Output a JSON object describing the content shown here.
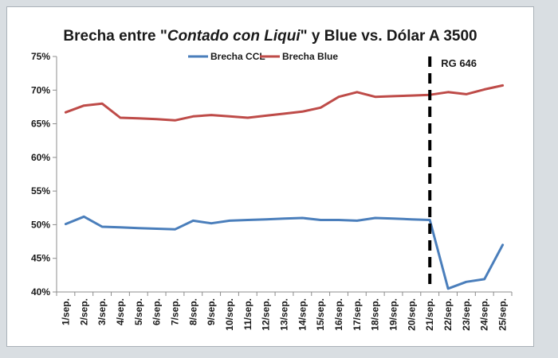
{
  "chart_data": {
    "type": "line",
    "title_parts": [
      {
        "text": "Brecha entre \"",
        "italic": false
      },
      {
        "text": "Contado con Liqui",
        "italic": true
      },
      {
        "text": "\" y Blue vs. Dólar A 3500",
        "italic": false
      }
    ],
    "categories": [
      "1/sep.",
      "2/sep.",
      "3/sep.",
      "4/sep.",
      "5/sep.",
      "6/sep.",
      "7/sep.",
      "8/sep.",
      "9/sep.",
      "10/sep.",
      "11/sep.",
      "12/sep.",
      "13/sep.",
      "14/sep.",
      "15/sep.",
      "16/sep.",
      "17/sep.",
      "18/sep.",
      "19/sep.",
      "20/sep.",
      "21/sep.",
      "22/sep.",
      "23/sep.",
      "24/sep.",
      "25/sep."
    ],
    "ylim": [
      0.4,
      0.75
    ],
    "yticks": [
      0.4,
      0.45,
      0.5,
      0.55,
      0.6,
      0.65,
      0.7,
      0.75
    ],
    "ytick_labels": [
      "40%",
      "45%",
      "50%",
      "55%",
      "60%",
      "65%",
      "70%",
      "75%"
    ],
    "grid": false,
    "legend": "top-center",
    "series": [
      {
        "name": "Brecha CCL",
        "color": "#4a7ebb",
        "values": [
          0.501,
          0.512,
          0.497,
          0.496,
          0.495,
          0.494,
          0.493,
          0.506,
          0.502,
          0.506,
          0.507,
          0.508,
          0.509,
          0.51,
          0.507,
          0.507,
          0.506,
          0.51,
          0.509,
          0.508,
          0.507,
          0.405,
          0.415,
          0.419,
          0.47
        ]
      },
      {
        "name": "Brecha Blue",
        "color": "#be4b48",
        "values": [
          0.667,
          0.677,
          0.68,
          0.659,
          0.658,
          0.657,
          0.655,
          0.661,
          0.663,
          0.661,
          0.659,
          0.662,
          0.665,
          0.668,
          0.674,
          0.69,
          0.697,
          0.69,
          0.691,
          0.692,
          0.693,
          0.697,
          0.694,
          0.701,
          0.707
        ]
      }
    ],
    "annotation": {
      "text": "RG 646",
      "at_category": "21/sep.",
      "style": "dashed vertical line"
    }
  }
}
